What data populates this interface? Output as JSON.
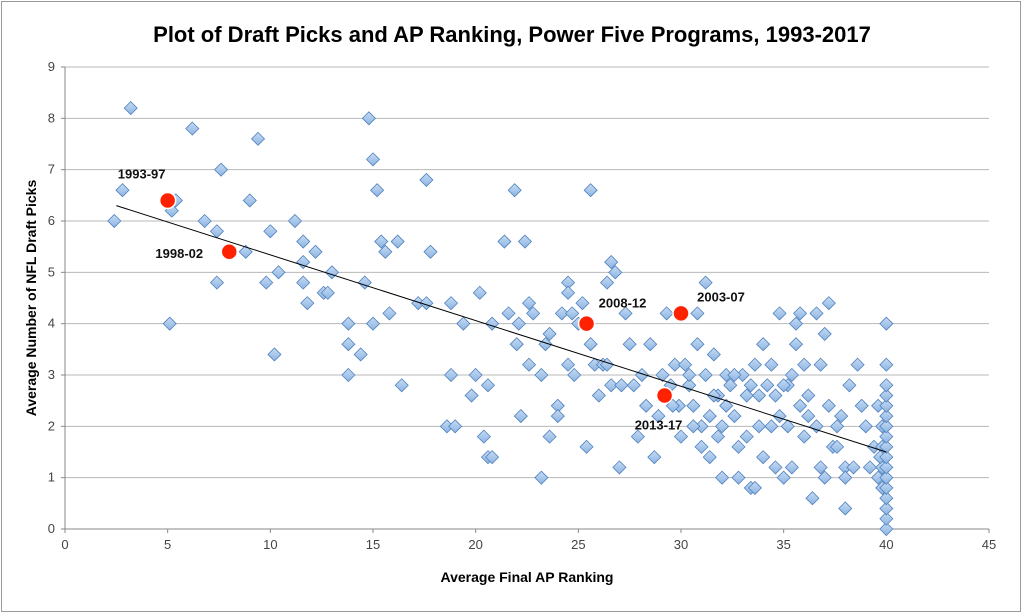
{
  "chart_data": {
    "type": "scatter",
    "title": "Plot of Draft Picks and AP Ranking, Power Five Programs, 1993-2017",
    "xlabel": "Average Final AP Ranking",
    "ylabel": "Average Number of NFL Draft Picks",
    "xlim": [
      0,
      45
    ],
    "ylim": [
      0,
      9
    ],
    "xticks": [
      "0",
      "5",
      "10",
      "15",
      "20",
      "25",
      "30",
      "35",
      "40",
      "45"
    ],
    "yticks": [
      "0",
      "1",
      "2",
      "3",
      "4",
      "5",
      "6",
      "7",
      "8",
      "9"
    ],
    "grid": "horizontal",
    "legend": "none",
    "colors": {
      "programs": "#8db4e2",
      "programs_edge": "#4f81bd",
      "periods": "#ff2200",
      "trendline": "#000000"
    },
    "trendline": {
      "x": [
        2.5,
        40
      ],
      "y": [
        6.3,
        1.5
      ]
    },
    "highlighted": [
      {
        "label": "1993-97",
        "x": 5.0,
        "y": 6.4
      },
      {
        "label": "1998-02",
        "x": 8.0,
        "y": 5.4
      },
      {
        "label": "2008-12",
        "x": 25.4,
        "y": 4.0
      },
      {
        "label": "2003-07",
        "x": 30.0,
        "y": 4.2
      },
      {
        "label": "2013-17",
        "x": 29.2,
        "y": 2.6
      }
    ],
    "points": [
      [
        2.4,
        6.0
      ],
      [
        2.8,
        6.6
      ],
      [
        3.2,
        8.2
      ],
      [
        5.1,
        4.0
      ],
      [
        5.4,
        6.4
      ],
      [
        5.2,
        6.2
      ],
      [
        6.2,
        7.8
      ],
      [
        6.8,
        6.0
      ],
      [
        7.4,
        5.8
      ],
      [
        7.4,
        4.8
      ],
      [
        7.6,
        7.0
      ],
      [
        9.4,
        7.6
      ],
      [
        8.8,
        5.4
      ],
      [
        9.0,
        6.4
      ],
      [
        9.8,
        4.8
      ],
      [
        10.0,
        5.8
      ],
      [
        10.2,
        3.4
      ],
      [
        10.4,
        5.0
      ],
      [
        11.2,
        6.0
      ],
      [
        11.6,
        5.6
      ],
      [
        11.6,
        5.2
      ],
      [
        11.6,
        4.8
      ],
      [
        11.8,
        4.4
      ],
      [
        12.2,
        5.4
      ],
      [
        12.6,
        4.6
      ],
      [
        12.8,
        4.6
      ],
      [
        13.0,
        5.0
      ],
      [
        13.8,
        4.0
      ],
      [
        13.8,
        3.6
      ],
      [
        13.8,
        3.0
      ],
      [
        14.4,
        3.4
      ],
      [
        14.6,
        4.8
      ],
      [
        14.8,
        8.0
      ],
      [
        15.0,
        7.2
      ],
      [
        15.2,
        6.6
      ],
      [
        15.0,
        4.0
      ],
      [
        15.4,
        5.6
      ],
      [
        15.6,
        5.4
      ],
      [
        15.8,
        4.2
      ],
      [
        16.2,
        5.6
      ],
      [
        16.4,
        2.8
      ],
      [
        17.2,
        4.4
      ],
      [
        17.6,
        4.4
      ],
      [
        17.6,
        6.8
      ],
      [
        17.8,
        5.4
      ],
      [
        18.6,
        2.0
      ],
      [
        18.8,
        4.4
      ],
      [
        18.8,
        3.0
      ],
      [
        19.0,
        2.0
      ],
      [
        19.4,
        4.0
      ],
      [
        19.8,
        2.6
      ],
      [
        20.0,
        3.0
      ],
      [
        20.2,
        4.6
      ],
      [
        20.4,
        1.8
      ],
      [
        20.6,
        2.8
      ],
      [
        20.6,
        1.4
      ],
      [
        20.8,
        1.4
      ],
      [
        20.8,
        4.0
      ],
      [
        21.4,
        5.6
      ],
      [
        21.6,
        4.2
      ],
      [
        21.9,
        6.6
      ],
      [
        22.0,
        3.6
      ],
      [
        22.1,
        4.0
      ],
      [
        22.2,
        2.2
      ],
      [
        22.4,
        5.6
      ],
      [
        22.6,
        4.4
      ],
      [
        22.8,
        4.2
      ],
      [
        22.6,
        3.2
      ],
      [
        23.2,
        3.0
      ],
      [
        23.2,
        1.0
      ],
      [
        23.4,
        3.6
      ],
      [
        23.6,
        3.8
      ],
      [
        23.6,
        1.8
      ],
      [
        24.0,
        2.4
      ],
      [
        24.2,
        4.2
      ],
      [
        24.0,
        2.2
      ],
      [
        24.5,
        4.8
      ],
      [
        24.5,
        4.6
      ],
      [
        24.7,
        4.2
      ],
      [
        24.8,
        3.0
      ],
      [
        24.5,
        3.2
      ],
      [
        25.0,
        4.0
      ],
      [
        25.2,
        4.4
      ],
      [
        25.4,
        1.6
      ],
      [
        25.6,
        6.6
      ],
      [
        25.6,
        3.6
      ],
      [
        25.8,
        3.2
      ],
      [
        26.0,
        2.6
      ],
      [
        26.2,
        3.2
      ],
      [
        26.4,
        3.2
      ],
      [
        26.4,
        4.8
      ],
      [
        26.6,
        5.2
      ],
      [
        26.8,
        5.0
      ],
      [
        26.6,
        2.8
      ],
      [
        27.0,
        1.2
      ],
      [
        27.1,
        2.8
      ],
      [
        27.3,
        4.2
      ],
      [
        27.5,
        3.6
      ],
      [
        27.7,
        2.8
      ],
      [
        27.9,
        1.8
      ],
      [
        28.1,
        3.0
      ],
      [
        28.3,
        2.4
      ],
      [
        28.5,
        3.6
      ],
      [
        28.7,
        1.4
      ],
      [
        28.9,
        2.2
      ],
      [
        29.1,
        3.0
      ],
      [
        29.3,
        4.2
      ],
      [
        29.5,
        2.8
      ],
      [
        29.7,
        3.2
      ],
      [
        29.9,
        2.4
      ],
      [
        29.6,
        2.4
      ],
      [
        30.2,
        3.2
      ],
      [
        30.4,
        2.8
      ],
      [
        30.6,
        2.4
      ],
      [
        30.8,
        4.2
      ],
      [
        30.8,
        3.6
      ],
      [
        31.0,
        2.0
      ],
      [
        31.0,
        1.6
      ],
      [
        31.2,
        4.8
      ],
      [
        31.2,
        3.0
      ],
      [
        31.4,
        2.2
      ],
      [
        31.4,
        1.4
      ],
      [
        31.6,
        3.4
      ],
      [
        31.8,
        2.6
      ],
      [
        32.0,
        2.0
      ],
      [
        32.0,
        1.0
      ],
      [
        32.2,
        3.0
      ],
      [
        32.4,
        2.8
      ],
      [
        32.6,
        2.2
      ],
      [
        32.8,
        1.6
      ],
      [
        32.8,
        1.0
      ],
      [
        33.0,
        3.0
      ],
      [
        33.2,
        2.6
      ],
      [
        33.2,
        1.8
      ],
      [
        33.4,
        0.8
      ],
      [
        33.6,
        3.2
      ],
      [
        33.6,
        0.8
      ],
      [
        33.8,
        2.6
      ],
      [
        34.0,
        1.4
      ],
      [
        34.2,
        2.8
      ],
      [
        34.4,
        3.2
      ],
      [
        34.4,
        2.0
      ],
      [
        34.6,
        2.6
      ],
      [
        34.8,
        4.2
      ],
      [
        34.8,
        2.2
      ],
      [
        35.0,
        1.0
      ],
      [
        35.2,
        2.8
      ],
      [
        35.2,
        2.0
      ],
      [
        35.4,
        1.2
      ],
      [
        35.6,
        4.0
      ],
      [
        35.6,
        3.6
      ],
      [
        35.8,
        2.4
      ],
      [
        35.8,
        4.2
      ],
      [
        36.0,
        3.2
      ],
      [
        36.2,
        2.2
      ],
      [
        36.4,
        0.6
      ],
      [
        36.6,
        4.2
      ],
      [
        36.6,
        2.0
      ],
      [
        36.8,
        1.2
      ],
      [
        37.0,
        3.8
      ],
      [
        37.0,
        1.0
      ],
      [
        37.2,
        4.4
      ],
      [
        37.2,
        2.4
      ],
      [
        37.4,
        1.6
      ],
      [
        37.6,
        2.0
      ],
      [
        37.8,
        2.2
      ],
      [
        38.0,
        0.4
      ],
      [
        38.0,
        1.2
      ],
      [
        38.2,
        2.8
      ],
      [
        38.4,
        1.2
      ],
      [
        38.6,
        3.2
      ],
      [
        38.8,
        2.4
      ],
      [
        39.0,
        2.0
      ],
      [
        39.4,
        1.6
      ],
      [
        36.2,
        2.6
      ],
      [
        35.0,
        2.8
      ],
      [
        32.2,
        2.4
      ],
      [
        31.6,
        2.6
      ],
      [
        30.0,
        1.8
      ],
      [
        36.8,
        3.2
      ],
      [
        34.0,
        3.6
      ],
      [
        35.4,
        3.0
      ],
      [
        38.0,
        1.0
      ],
      [
        37.6,
        1.6
      ],
      [
        39.2,
        1.2
      ],
      [
        36.0,
        1.8
      ],
      [
        33.8,
        2.0
      ],
      [
        30.4,
        3.0
      ],
      [
        31.8,
        1.8
      ],
      [
        34.6,
        1.2
      ],
      [
        32.6,
        3.0
      ],
      [
        30.6,
        2.0
      ],
      [
        33.4,
        2.8
      ],
      [
        39.6,
        2.4
      ],
      [
        39.8,
        1.6
      ],
      [
        39.8,
        1.2
      ],
      [
        39.6,
        1.0
      ],
      [
        39.8,
        0.8
      ],
      [
        39.7,
        1.4
      ],
      [
        39.8,
        2.0
      ],
      [
        40,
        0.0
      ],
      [
        40,
        0.2
      ],
      [
        40,
        0.4
      ],
      [
        40,
        0.6
      ],
      [
        40,
        0.8
      ],
      [
        40,
        1.0
      ],
      [
        40,
        1.2
      ],
      [
        40,
        1.4
      ],
      [
        40,
        1.6
      ],
      [
        40,
        1.8
      ],
      [
        40,
        2.0
      ],
      [
        40,
        2.2
      ],
      [
        40,
        2.4
      ],
      [
        40,
        2.6
      ],
      [
        40,
        2.8
      ],
      [
        40,
        3.2
      ],
      [
        40,
        4.0
      ]
    ]
  }
}
